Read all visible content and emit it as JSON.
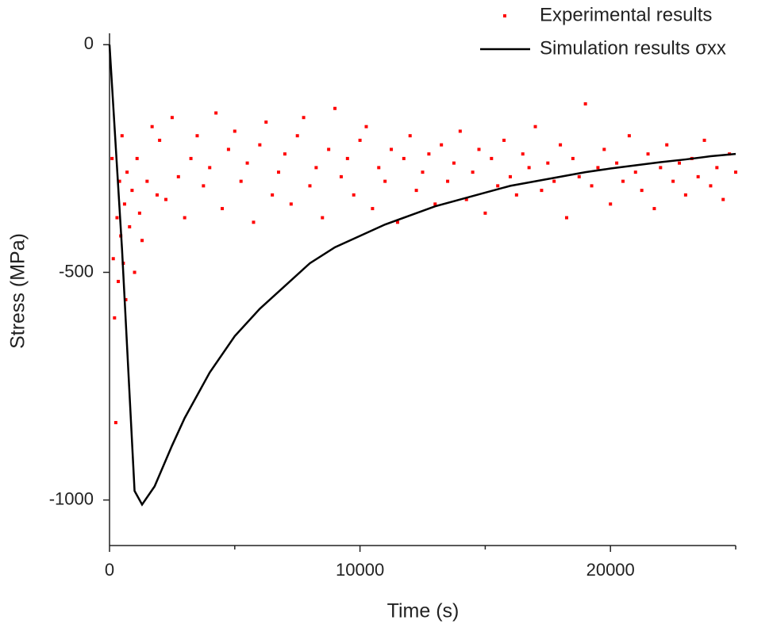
{
  "chart_data": {
    "type": "scatter",
    "xlabel": "Time (s)",
    "ylabel": "Stress (MPa)",
    "xlim": [
      0,
      25000
    ],
    "ylim": [
      -1100,
      25
    ],
    "xticks": [
      0,
      10000,
      20000
    ],
    "xminorticks": [
      5000,
      15000,
      25000
    ],
    "yticks": [
      0,
      -500,
      -1000
    ],
    "grid": false,
    "legend": "top-right",
    "series": [
      {
        "name": "Experimental results",
        "type": "scatter",
        "color": "#ff0000",
        "x": [
          100,
          150,
          200,
          250,
          300,
          350,
          400,
          450,
          500,
          550,
          600,
          650,
          700,
          800,
          900,
          1000,
          1100,
          1200,
          1300,
          1500,
          1700,
          1900,
          2000,
          2250,
          2500,
          2750,
          3000,
          3250,
          3500,
          3750,
          4000,
          4250,
          4500,
          4750,
          5000,
          5250,
          5500,
          5750,
          6000,
          6250,
          6500,
          6750,
          7000,
          7250,
          7500,
          7750,
          8000,
          8250,
          8500,
          8750,
          9000,
          9250,
          9500,
          9750,
          10000,
          10250,
          10500,
          10750,
          11000,
          11250,
          11500,
          11750,
          12000,
          12250,
          12500,
          12750,
          13000,
          13250,
          13500,
          13750,
          14000,
          14250,
          14500,
          14750,
          15000,
          15250,
          15500,
          15750,
          16000,
          16250,
          16500,
          16750,
          17000,
          17250,
          17500,
          17750,
          18000,
          18250,
          18500,
          18750,
          19000,
          19250,
          19500,
          19750,
          20000,
          20250,
          20500,
          20750,
          21000,
          21250,
          21500,
          21750,
          22000,
          22250,
          22500,
          22750,
          23000,
          23250,
          23500,
          23750,
          24000,
          24250,
          24500,
          24750,
          25000
        ],
        "values": [
          -250,
          -470,
          -600,
          -830,
          -380,
          -520,
          -300,
          -420,
          -200,
          -480,
          -350,
          -560,
          -280,
          -400,
          -320,
          -500,
          -250,
          -370,
          -430,
          -300,
          -180,
          -330,
          -210,
          -340,
          -160,
          -290,
          -380,
          -250,
          -200,
          -310,
          -270,
          -150,
          -360,
          -230,
          -190,
          -300,
          -260,
          -390,
          -220,
          -170,
          -330,
          -280,
          -240,
          -350,
          -200,
          -160,
          -310,
          -270,
          -380,
          -230,
          -140,
          -290,
          -250,
          -330,
          -210,
          -180,
          -360,
          -270,
          -300,
          -230,
          -390,
          -250,
          -200,
          -320,
          -280,
          -240,
          -350,
          -220,
          -300,
          -260,
          -190,
          -340,
          -280,
          -230,
          -370,
          -250,
          -310,
          -210,
          -290,
          -330,
          -240,
          -270,
          -180,
          -320,
          -260,
          -300,
          -220,
          -380,
          -250,
          -290,
          -130,
          -310,
          -270,
          -230,
          -350,
          -260,
          -300,
          -200,
          -280,
          -320,
          -240,
          -360,
          -270,
          -220,
          -300,
          -260,
          -330,
          -250,
          -290,
          -210,
          -310,
          -270,
          -340,
          -240,
          -280
        ]
      },
      {
        "name": "Simulation results σxx",
        "type": "line",
        "color": "#000000",
        "x": [
          0,
          500,
          1000,
          1300,
          1800,
          2500,
          3000,
          4000,
          5000,
          6000,
          7000,
          8000,
          9000,
          10000,
          11000,
          12000,
          13000,
          14000,
          15000,
          16000,
          17000,
          18000,
          19000,
          20000,
          21000,
          22000,
          23000,
          24000,
          25000
        ],
        "values": [
          0,
          -450,
          -980,
          -1010,
          -970,
          -880,
          -820,
          -720,
          -640,
          -580,
          -530,
          -480,
          -445,
          -420,
          -395,
          -375,
          -355,
          -340,
          -325,
          -310,
          -300,
          -290,
          -280,
          -272,
          -265,
          -258,
          -252,
          -245,
          -240
        ]
      }
    ]
  }
}
